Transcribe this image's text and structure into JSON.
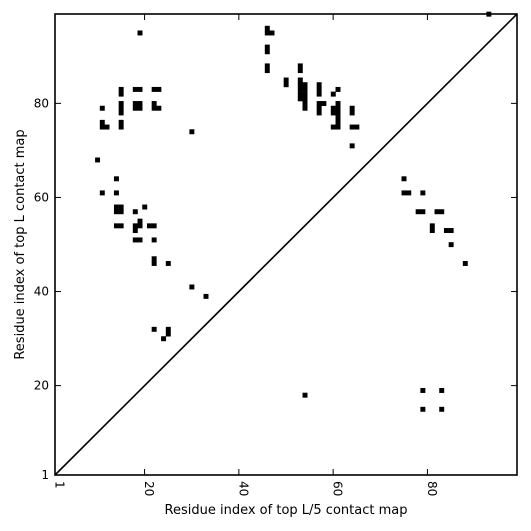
{
  "chart_data": {
    "type": "heatmap",
    "title": "",
    "xlabel": "Residue index of top L/5 contact map",
    "ylabel": "Residue index of top L contact map",
    "xlim": [
      1,
      99
    ],
    "ylim": [
      1,
      99
    ],
    "x_ticks": [
      1,
      20,
      40,
      60,
      80
    ],
    "y_ticks": [
      1,
      20,
      40,
      60,
      80
    ],
    "grid": false,
    "diagonal": true,
    "cell_color": "#000000",
    "cells": [
      [
        93,
        99
      ],
      [
        19,
        95
      ],
      [
        46,
        96
      ],
      [
        46,
        95
      ],
      [
        47,
        95
      ],
      [
        46,
        92
      ],
      [
        46,
        91
      ],
      [
        46,
        88
      ],
      [
        46,
        87
      ],
      [
        53,
        88
      ],
      [
        53,
        87
      ],
      [
        50,
        85
      ],
      [
        50,
        84
      ],
      [
        53,
        85
      ],
      [
        53,
        84
      ],
      [
        54,
        84
      ],
      [
        53,
        83
      ],
      [
        54,
        83
      ],
      [
        53,
        82
      ],
      [
        54,
        82
      ],
      [
        53,
        81
      ],
      [
        54,
        81
      ],
      [
        54,
        80
      ],
      [
        54,
        79
      ],
      [
        57,
        84
      ],
      [
        57,
        83
      ],
      [
        57,
        82
      ],
      [
        60,
        82
      ],
      [
        61,
        83
      ],
      [
        57,
        80
      ],
      [
        58,
        80
      ],
      [
        57,
        79
      ],
      [
        57,
        78
      ],
      [
        60,
        79
      ],
      [
        61,
        79
      ],
      [
        60,
        78
      ],
      [
        61,
        78
      ],
      [
        61,
        80
      ],
      [
        61,
        77
      ],
      [
        64,
        79
      ],
      [
        64,
        78
      ],
      [
        61,
        76
      ],
      [
        60,
        75
      ],
      [
        61,
        75
      ],
      [
        64,
        75
      ],
      [
        65,
        75
      ],
      [
        64,
        71
      ],
      [
        15,
        83
      ],
      [
        15,
        82
      ],
      [
        18,
        83
      ],
      [
        19,
        83
      ],
      [
        22,
        83
      ],
      [
        23,
        83
      ],
      [
        11,
        79
      ],
      [
        15,
        80
      ],
      [
        15,
        79
      ],
      [
        15,
        78
      ],
      [
        18,
        80
      ],
      [
        19,
        80
      ],
      [
        18,
        79
      ],
      [
        19,
        79
      ],
      [
        22,
        80
      ],
      [
        22,
        79
      ],
      [
        23,
        79
      ],
      [
        11,
        76
      ],
      [
        11,
        75
      ],
      [
        12,
        75
      ],
      [
        15,
        76
      ],
      [
        15,
        75
      ],
      [
        30,
        74
      ],
      [
        10,
        68
      ],
      [
        14,
        64
      ],
      [
        11,
        61
      ],
      [
        14,
        61
      ],
      [
        20,
        58
      ],
      [
        14,
        58
      ],
      [
        15,
        58
      ],
      [
        14,
        57
      ],
      [
        15,
        57
      ],
      [
        18,
        57
      ],
      [
        14,
        54
      ],
      [
        15,
        54
      ],
      [
        18,
        54
      ],
      [
        19,
        55
      ],
      [
        19,
        54
      ],
      [
        21,
        54
      ],
      [
        22,
        54
      ],
      [
        18,
        53
      ],
      [
        18,
        51
      ],
      [
        19,
        51
      ],
      [
        22,
        51
      ],
      [
        22,
        47
      ],
      [
        22,
        46
      ],
      [
        25,
        46
      ],
      [
        30,
        41
      ],
      [
        33,
        39
      ],
      [
        22,
        32
      ],
      [
        25,
        32
      ],
      [
        25,
        31
      ],
      [
        24,
        30
      ],
      [
        54,
        18
      ],
      [
        75,
        64
      ],
      [
        75,
        61
      ],
      [
        76,
        61
      ],
      [
        79,
        61
      ],
      [
        78,
        57
      ],
      [
        79,
        57
      ],
      [
        82,
        57
      ],
      [
        83,
        57
      ],
      [
        81,
        54
      ],
      [
        81,
        53
      ],
      [
        84,
        53
      ],
      [
        85,
        53
      ],
      [
        85,
        50
      ],
      [
        88,
        46
      ],
      [
        79,
        19
      ],
      [
        83,
        19
      ],
      [
        79,
        15
      ],
      [
        83,
        15
      ]
    ]
  }
}
